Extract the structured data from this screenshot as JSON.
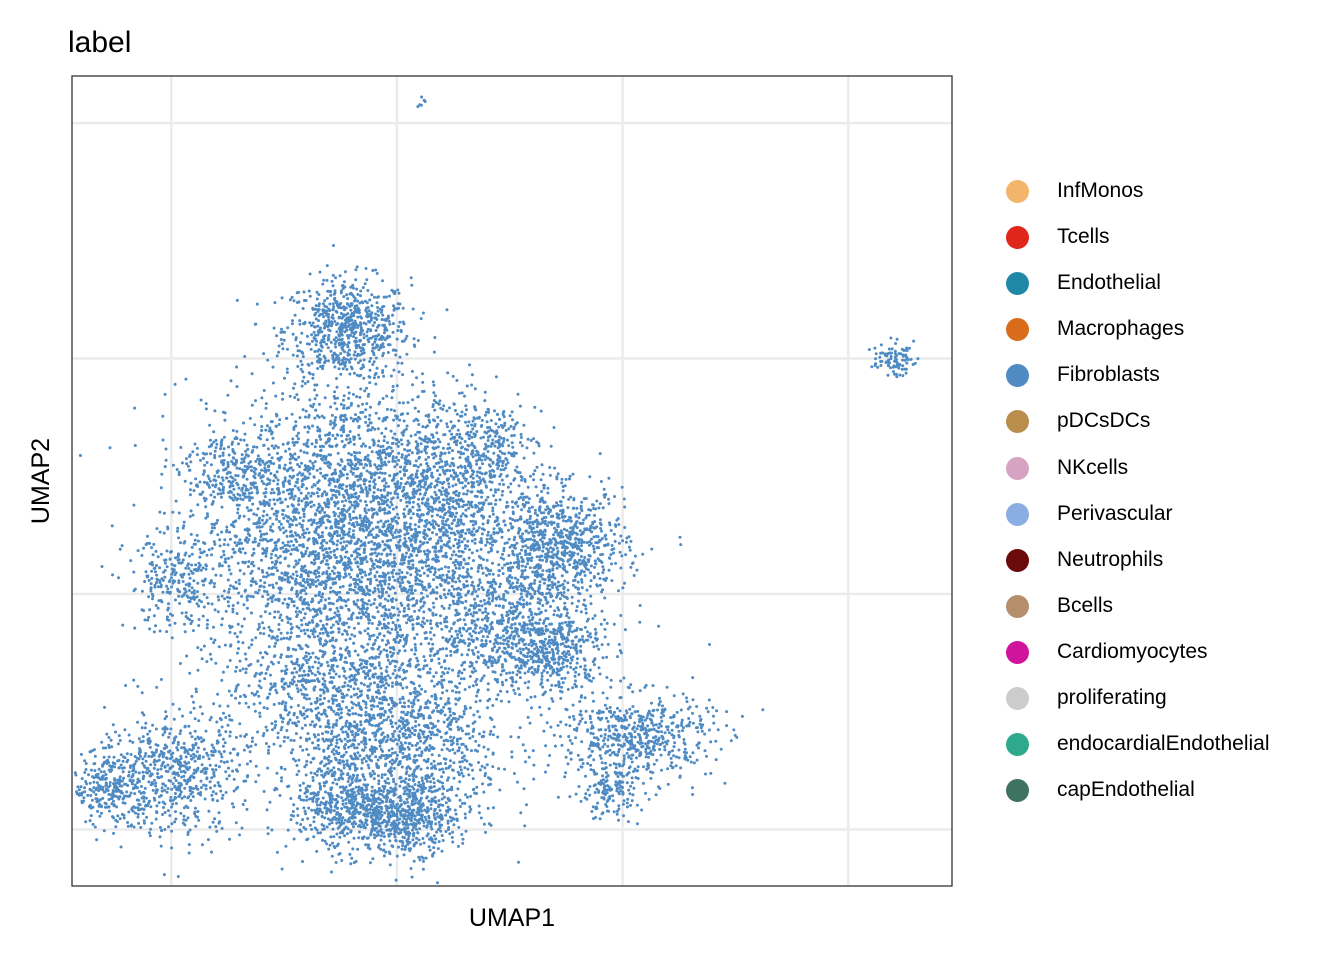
{
  "chart_data": {
    "type": "scatter",
    "title": "label",
    "xlabel": "UMAP1",
    "ylabel": "UMAP2",
    "xlim": [
      -5.2,
      14.3
    ],
    "ylim": [
      -6.2,
      11.0
    ],
    "x_gridlines": [
      -3,
      2,
      7,
      12
    ],
    "y_gridlines": [
      -5,
      0,
      5,
      10
    ],
    "tick_labels_shown": false,
    "grid": true,
    "legend_position": "right",
    "point_color": "#4F8BC2",
    "legend": [
      {
        "name": "InfMonos",
        "color": "#F2B56B"
      },
      {
        "name": "Tcells",
        "color": "#E0251A"
      },
      {
        "name": "Endothelial",
        "color": "#2089A7"
      },
      {
        "name": "Macrophages",
        "color": "#D96C1A"
      },
      {
        "name": "Fibroblasts",
        "color": "#4F8BC2"
      },
      {
        "name": "pDCsDCs",
        "color": "#B98E4D"
      },
      {
        "name": "NKcells",
        "color": "#D6A3C3"
      },
      {
        "name": "Perivascular",
        "color": "#8AAEE2"
      },
      {
        "name": "Neutrophils",
        "color": "#6B0A0A"
      },
      {
        "name": "Bcells",
        "color": "#B58F6C"
      },
      {
        "name": "Cardiomyocytes",
        "color": "#D1149C"
      },
      {
        "name": "proliferating",
        "color": "#CCCCCC"
      },
      {
        "name": "endocardialEndothelial",
        "color": "#2FA98C"
      },
      {
        "name": "capEndothelial",
        "color": "#3E7261"
      }
    ],
    "clusters": [
      {
        "series": "Fibroblasts",
        "cx": 0.9,
        "cy": 5.6,
        "sx": 0.7,
        "sy": 0.55,
        "n": 700
      },
      {
        "series": "Fibroblasts",
        "cx": 1.0,
        "cy": 2.8,
        "sx": 1.6,
        "sy": 0.9,
        "n": 1000
      },
      {
        "series": "Fibroblasts",
        "cx": -0.3,
        "cy": 1.0,
        "sx": 1.2,
        "sy": 1.0,
        "n": 900
      },
      {
        "series": "Fibroblasts",
        "cx": 1.8,
        "cy": 0.5,
        "sx": 1.4,
        "sy": 1.3,
        "n": 1300
      },
      {
        "series": "Fibroblasts",
        "cx": 3.0,
        "cy": 1.8,
        "sx": 1.0,
        "sy": 1.0,
        "n": 700
      },
      {
        "series": "Fibroblasts",
        "cx": 5.6,
        "cy": 1.0,
        "sx": 0.75,
        "sy": 0.6,
        "n": 800
      },
      {
        "series": "Fibroblasts",
        "cx": 5.4,
        "cy": -1.2,
        "sx": 0.6,
        "sy": 0.5,
        "n": 450
      },
      {
        "series": "Fibroblasts",
        "cx": 4.2,
        "cy": -0.7,
        "sx": 0.8,
        "sy": 0.7,
        "n": 500
      },
      {
        "series": "Fibroblasts",
        "cx": 0.6,
        "cy": -2.0,
        "sx": 1.3,
        "sy": 1.0,
        "n": 1000
      },
      {
        "series": "Fibroblasts",
        "cx": 2.2,
        "cy": -3.4,
        "sx": 1.1,
        "sy": 0.9,
        "n": 900
      },
      {
        "series": "Fibroblasts",
        "cx": 0.8,
        "cy": -4.5,
        "sx": 0.6,
        "sy": 0.5,
        "n": 450
      },
      {
        "series": "Fibroblasts",
        "cx": 2.2,
        "cy": -4.8,
        "sx": 0.55,
        "sy": 0.35,
        "n": 450
      },
      {
        "series": "Fibroblasts",
        "cx": -2.9,
        "cy": -3.8,
        "sx": 0.75,
        "sy": 0.65,
        "n": 550
      },
      {
        "series": "Fibroblasts",
        "cx": -4.3,
        "cy": -4.1,
        "sx": 0.45,
        "sy": 0.4,
        "n": 300
      },
      {
        "series": "Fibroblasts",
        "cx": -2.9,
        "cy": 0.2,
        "sx": 0.55,
        "sy": 0.5,
        "n": 250
      },
      {
        "series": "Fibroblasts",
        "cx": -1.6,
        "cy": 2.6,
        "sx": 0.5,
        "sy": 0.4,
        "n": 200
      },
      {
        "series": "Fibroblasts",
        "cx": 4.0,
        "cy": 3.2,
        "sx": 0.55,
        "sy": 0.45,
        "n": 200
      },
      {
        "series": "Fibroblasts",
        "cx": 7.3,
        "cy": -3.0,
        "sx": 0.85,
        "sy": 0.45,
        "n": 550
      },
      {
        "series": "Fibroblasts",
        "cx": 6.7,
        "cy": -4.2,
        "sx": 0.4,
        "sy": 0.3,
        "n": 150
      },
      {
        "series": "Fibroblasts",
        "cx": 13.0,
        "cy": 5.0,
        "sx": 0.22,
        "sy": 0.17,
        "n": 90
      },
      {
        "series": "Fibroblasts",
        "cx": 5.8,
        "cy": -0.8,
        "sx": 0.12,
        "sy": 0.1,
        "n": 8
      },
      {
        "series": "Fibroblasts",
        "cx": 2.5,
        "cy": 10.45,
        "sx": 0.06,
        "sy": 0.06,
        "n": 6
      }
    ]
  }
}
